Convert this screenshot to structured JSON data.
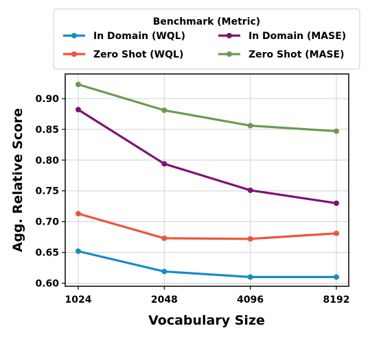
{
  "chart_data": {
    "type": "line",
    "categories": [
      "1024",
      "2048",
      "4096",
      "8192"
    ],
    "xlabel": "Vocabulary Size",
    "ylabel": "Agg. Relative Score",
    "ylim": [
      0.595,
      0.94
    ],
    "yticks": [
      0.6,
      0.65,
      0.7,
      0.75,
      0.8,
      0.85,
      0.9
    ],
    "ytick_labels": [
      "0.60",
      "0.65",
      "0.70",
      "0.75",
      "0.80",
      "0.85",
      "0.90"
    ],
    "grid": true,
    "legend": {
      "title": "Benchmark (Metric)",
      "placement": "top-center",
      "columns": 2
    },
    "series": [
      {
        "name": "In Domain (WQL)",
        "color": "#1a8ac8",
        "values": [
          0.652,
          0.619,
          0.61,
          0.61
        ]
      },
      {
        "name": "Zero Shot (WQL)",
        "color": "#f0533a",
        "values": [
          0.713,
          0.673,
          0.672,
          0.681
        ]
      },
      {
        "name": "In Domain (MASE)",
        "color": "#7e1177",
        "values": [
          0.882,
          0.794,
          0.751,
          0.73
        ]
      },
      {
        "name": "Zero Shot (MASE)",
        "color": "#6b9a4f",
        "values": [
          0.923,
          0.881,
          0.856,
          0.847
        ]
      }
    ]
  }
}
